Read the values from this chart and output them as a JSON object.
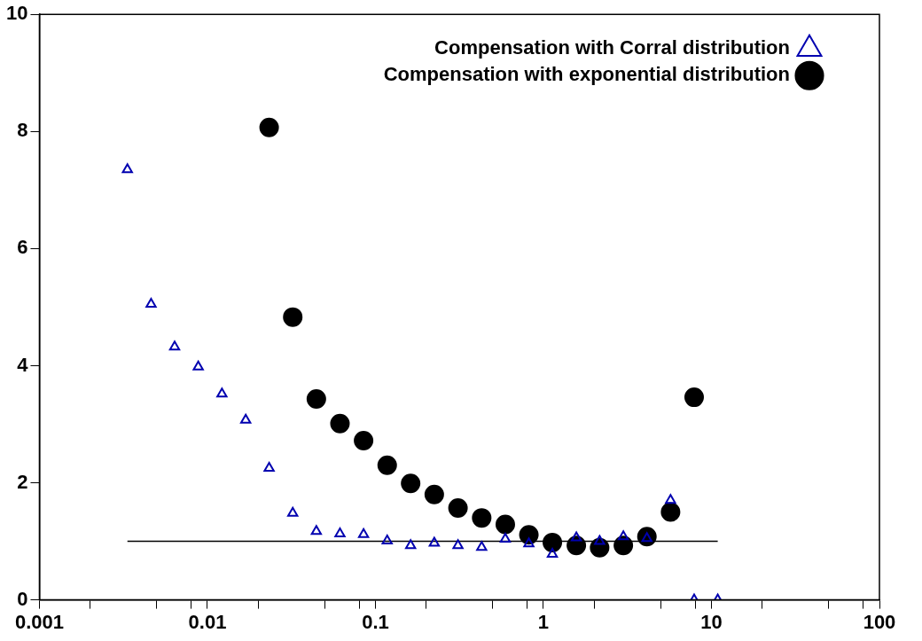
{
  "chart_data": {
    "type": "scatter",
    "log": "x",
    "legend": "top right",
    "grid": false,
    "xlim": [
      0.001,
      100
    ],
    "ylim": [
      0,
      10
    ],
    "xticks": [
      0.001,
      {
        "value": 0.002,
        "label": null
      },
      {
        "value": 0.005,
        "label": null
      },
      {
        "value": 0.008,
        "label": null
      },
      0.01,
      {
        "value": 0.02,
        "label": null
      },
      {
        "value": 0.05,
        "label": null
      },
      {
        "value": 0.08,
        "label": null
      },
      0.1,
      {
        "value": 0.2,
        "label": null
      },
      {
        "value": 0.5,
        "label": null
      },
      {
        "value": 0.8,
        "label": null
      },
      1,
      {
        "value": 2,
        "label": null
      },
      {
        "value": 5,
        "label": null
      },
      {
        "value": 8,
        "label": null
      },
      10,
      {
        "value": 20,
        "label": null
      },
      {
        "value": 50,
        "label": null
      },
      {
        "value": 80,
        "label": null
      },
      100
    ],
    "yticks": [
      0,
      2,
      4,
      6,
      8,
      10
    ],
    "series": [
      {
        "name": "Compensation with Corral distribution",
        "color": "#0000b0",
        "marker": "triangle",
        "x": [
          0.00334,
          0.00462,
          0.00638,
          0.00882,
          0.0122,
          0.0169,
          0.0233,
          0.0322,
          0.0445,
          0.0615,
          0.085,
          0.1175,
          0.162,
          0.224,
          0.31,
          0.429,
          0.593,
          0.819,
          1.13,
          1.57,
          2.16,
          2.99,
          4.13,
          5.71,
          7.89,
          10.9
        ],
        "values": [
          7.35,
          5.05,
          4.32,
          3.98,
          3.52,
          3.07,
          2.25,
          1.48,
          1.17,
          1.13,
          1.12,
          1.01,
          0.93,
          0.97,
          0.93,
          0.9,
          1.04,
          0.96,
          0.78,
          1.06,
          1.0,
          1.08,
          1.05,
          1.7,
          0,
          0
        ]
      },
      {
        "name": "Compensation with exponential distribution",
        "color": "#000000",
        "marker": "circle",
        "x": [
          0.0233,
          0.0322,
          0.0445,
          0.0615,
          0.085,
          0.1175,
          0.162,
          0.224,
          0.31,
          0.429,
          0.593,
          0.819,
          1.13,
          1.57,
          2.16,
          2.99,
          4.13,
          5.71,
          7.89
        ],
        "values": [
          8.07,
          4.83,
          3.43,
          3.01,
          2.72,
          2.3,
          1.99,
          1.8,
          1.57,
          1.4,
          1.29,
          1.11,
          0.98,
          0.93,
          0.89,
          0.93,
          1.08,
          1.5,
          3.46
        ]
      },
      {
        "type": "line",
        "color": "#000000",
        "marker": "none",
        "x": [
          0.00334,
          10.9
        ],
        "values": [
          1,
          1
        ]
      }
    ]
  }
}
